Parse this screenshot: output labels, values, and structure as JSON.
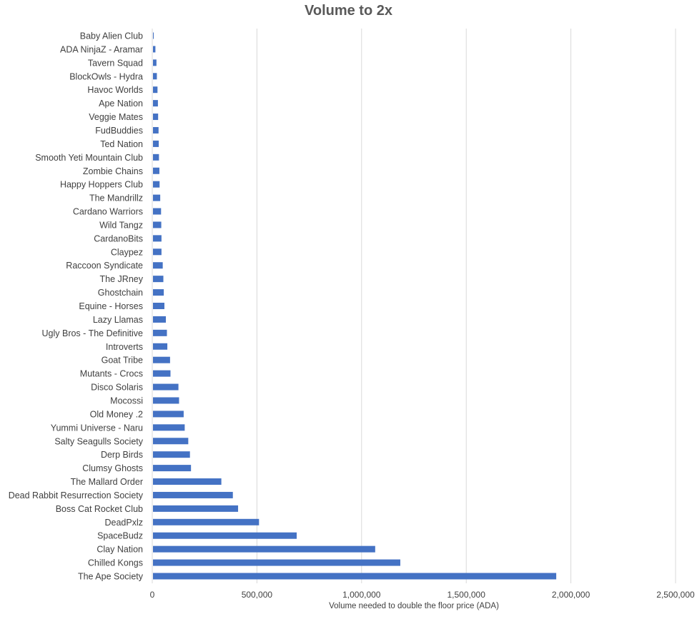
{
  "chart_data": {
    "type": "bar",
    "orientation": "horizontal",
    "title": "Volume to 2x",
    "xlabel": "Volume needed to double the floor price (ADA)",
    "ylabel": "",
    "xlim": [
      0,
      2500000
    ],
    "xticks": [
      0,
      500000,
      1000000,
      1500000,
      2000000,
      2500000
    ],
    "xtick_labels": [
      "0",
      "500,000",
      "1,000,000",
      "1,500,000",
      "2,000,000",
      "2,500,000"
    ],
    "grid": "vertical",
    "legend": "none",
    "bar_color": "#4472c4",
    "grid_color": "#d9d9d9",
    "categories": [
      "Baby Alien Club",
      "ADA NinjaZ - Aramar",
      "Tavern Squad",
      "BlockOwls - Hydra",
      "Havoc Worlds",
      "Ape Nation",
      "Veggie Mates",
      "FudBuddies",
      "Ted Nation",
      "Smooth Yeti Mountain Club",
      "Zombie Chains",
      "Happy Hoppers Club",
      "The Mandrillz",
      "Cardano Warriors",
      "Wild Tangz",
      "CardanoBits",
      "Claypez",
      "Raccoon Syndicate",
      "The JRney",
      "Ghostchain",
      "Equine - Horses",
      "Lazy Llamas",
      "Ugly Bros - The Definitive",
      "Introverts",
      "Goat Tribe",
      "Mutants - Crocs",
      "Disco Solaris",
      "Mocossi",
      "Old Money .2",
      "Yummi Universe - Naru",
      "Salty Seagulls Society",
      "Derp Birds",
      "Clumsy Ghosts",
      "The Mallard Order",
      "Dead Rabbit Resurrection Society",
      "Boss Cat Rocket Club",
      "DeadPxlz",
      "SpaceBudz",
      "Clay Nation",
      "Chilled Kongs",
      "The Ape Society"
    ],
    "values": [
      5000,
      15000,
      20000,
      22000,
      25000,
      27000,
      28000,
      30000,
      31000,
      32000,
      34000,
      35000,
      38000,
      42000,
      43000,
      44000,
      44000,
      50000,
      53000,
      55000,
      58000,
      65000,
      70000,
      72000,
      85000,
      87000,
      125000,
      128000,
      150000,
      155000,
      172000,
      180000,
      185000,
      330000,
      385000,
      410000,
      510000,
      690000,
      1065000,
      1185000,
      1930000
    ]
  }
}
